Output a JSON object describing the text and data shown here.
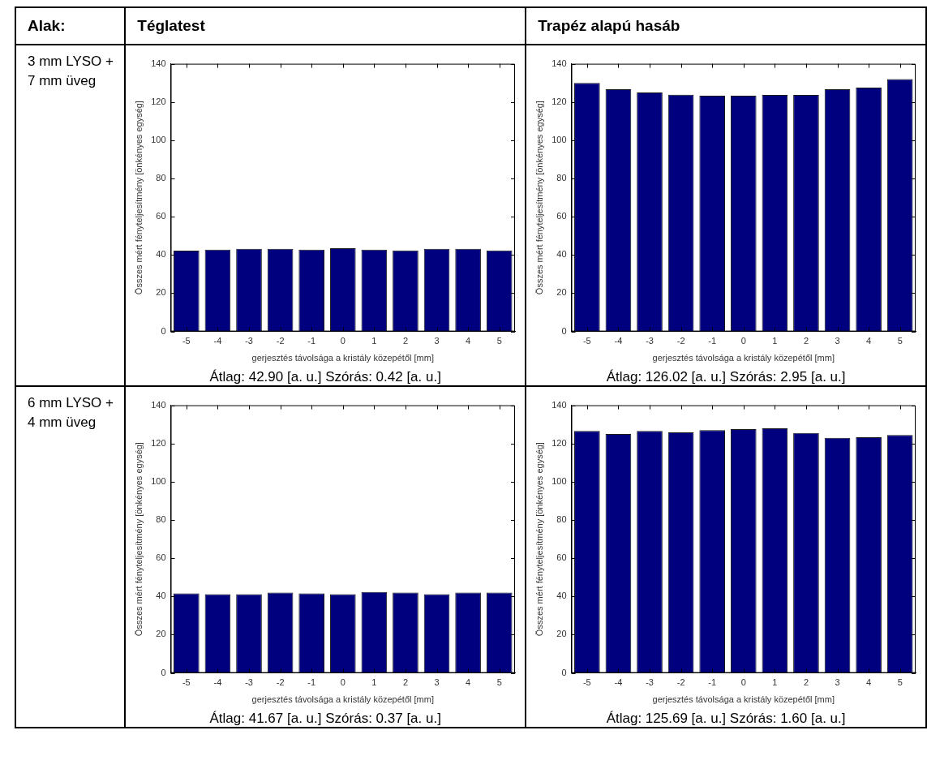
{
  "chart_data": [
    {
      "type": "other",
      "annotations": [
        "Alak:",
        "Téglatest",
        "Trapéz alapú hasáb",
        "3 mm LYSO + 7 mm üveg",
        "6 mm LYSO + 4 mm üveg"
      ]
    },
    {
      "type": "bar",
      "categories": [
        "-5",
        "-4",
        "-3",
        "-2",
        "-1",
        "0",
        "1",
        "2",
        "3",
        "4",
        "5"
      ],
      "values": [
        42.3,
        42.8,
        43.2,
        43.2,
        42.8,
        43.5,
        42.8,
        42.4,
        43.2,
        43.2,
        42.4
      ],
      "color": "#00007f",
      "xlabel": "gerjesztés távolsága a kristály közepétől [mm]",
      "ylabel": "Összes mért fényteljesítmény [önkényes egység]",
      "ylim": [
        0,
        140
      ],
      "yticks": [
        0,
        20,
        40,
        60,
        80,
        100,
        120,
        140
      ],
      "grid": false,
      "annotations": [
        "Átlag: 42.90 [a. u.]   Szórás: 0.42 [a. u.]"
      ]
    },
    {
      "type": "bar",
      "categories": [
        "-5",
        "-4",
        "-3",
        "-2",
        "-1",
        "0",
        "1",
        "2",
        "3",
        "4",
        "5"
      ],
      "values": [
        130,
        126.7,
        125,
        123.8,
        123.3,
        123.3,
        123.7,
        123.7,
        126.7,
        127.5,
        132
      ],
      "color": "#00007f",
      "xlabel": "gerjesztés távolsága a kristály közepétől [mm]",
      "ylabel": "Összes mért fényteljesítmény [önkényes egység]",
      "ylim": [
        0,
        140
      ],
      "yticks": [
        0,
        20,
        40,
        60,
        80,
        100,
        120,
        140
      ],
      "grid": false,
      "annotations": [
        "Átlag: 126.02 [a. u.]   Szórás: 2.95 [a. u.]"
      ]
    },
    {
      "type": "bar",
      "categories": [
        "-5",
        "-4",
        "-3",
        "-2",
        "-1",
        "0",
        "1",
        "2",
        "3",
        "4",
        "5"
      ],
      "values": [
        41.6,
        41.2,
        41.2,
        42,
        41.6,
        41.2,
        42.4,
        42,
        41.2,
        42,
        42
      ],
      "color": "#00007f",
      "xlabel": "gerjesztés távolsága a kristály közepétől [mm]",
      "ylabel": "Összes mért fényteljesítmény [önkényes egység]",
      "ylim": [
        0,
        140
      ],
      "yticks": [
        0,
        20,
        40,
        60,
        80,
        100,
        120,
        140
      ],
      "grid": false,
      "annotations": [
        "Átlag: 41.67 [a. u.]   Szórás: 0.37 [a. u.]"
      ]
    },
    {
      "type": "bar",
      "categories": [
        "-5",
        "-4",
        "-3",
        "-2",
        "-1",
        "0",
        "1",
        "2",
        "3",
        "4",
        "5"
      ],
      "values": [
        126.6,
        125,
        126.6,
        125.8,
        127,
        127.5,
        128,
        125.5,
        123,
        123.3,
        124.5
      ],
      "color": "#00007f",
      "xlabel": "gerjesztés távolsága a kristály közepétől [mm]",
      "ylabel": "Összes mért fényteljesítmény [önkényes egység]",
      "ylim": [
        0,
        140
      ],
      "yticks": [
        0,
        20,
        40,
        60,
        80,
        100,
        120,
        140
      ],
      "grid": false,
      "annotations": [
        "Átlag: 125.69 [a. u.]   Szórás: 1.60 [a. u.]"
      ]
    }
  ]
}
